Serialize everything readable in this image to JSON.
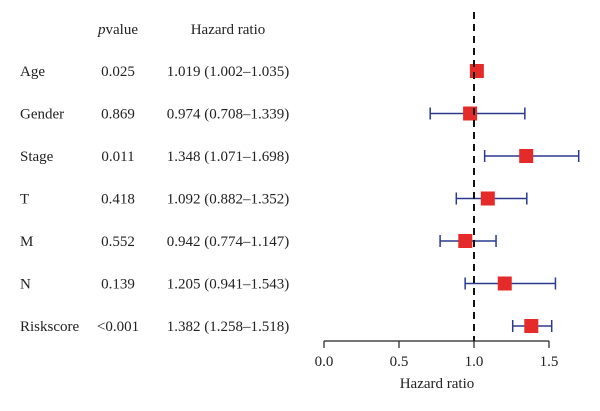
{
  "chart_data": {
    "type": "forest",
    "headers": {
      "pvalue_italic": "p",
      "pvalue_rest": "value",
      "hr": "Hazard ratio"
    },
    "rows": [
      {
        "label": "Age",
        "pvalue": "0.025",
        "hr_text": "1.019 (1.002–1.035)",
        "hr": 1.019,
        "lower": 1.002,
        "upper": 1.035
      },
      {
        "label": "Gender",
        "pvalue": "0.869",
        "hr_text": "0.974 (0.708–1.339)",
        "hr": 0.974,
        "lower": 0.708,
        "upper": 1.339
      },
      {
        "label": "Stage",
        "pvalue": "0.011",
        "hr_text": "1.348 (1.071–1.698)",
        "hr": 1.348,
        "lower": 1.071,
        "upper": 1.698
      },
      {
        "label": "T",
        "pvalue": "0.418",
        "hr_text": "1.092 (0.882–1.352)",
        "hr": 1.092,
        "lower": 0.882,
        "upper": 1.352
      },
      {
        "label": "M",
        "pvalue": "0.552",
        "hr_text": "0.942 (0.774–1.147)",
        "hr": 0.942,
        "lower": 0.774,
        "upper": 1.147
      },
      {
        "label": "N",
        "pvalue": "0.139",
        "hr_text": "1.205 (0.941–1.543)",
        "hr": 1.205,
        "lower": 0.941,
        "upper": 1.543
      },
      {
        "label": "Riskscore",
        "pvalue": "<0.001",
        "hr_text": "1.382 (1.258–1.518)",
        "hr": 1.382,
        "lower": 1.258,
        "upper": 1.518
      }
    ],
    "xlabel": "Hazard ratio",
    "xlim": [
      0,
      1.5
    ],
    "xticks": [
      0.0,
      0.5,
      1.0,
      1.5
    ],
    "xtick_labels": [
      "0.0",
      "0.5",
      "1.0",
      "1.5"
    ],
    "reference_line": 1.0,
    "colors": {
      "point": "#e52a2a",
      "ci": "#2b3a8f",
      "axis": "#222222",
      "reference": "#111111"
    }
  }
}
